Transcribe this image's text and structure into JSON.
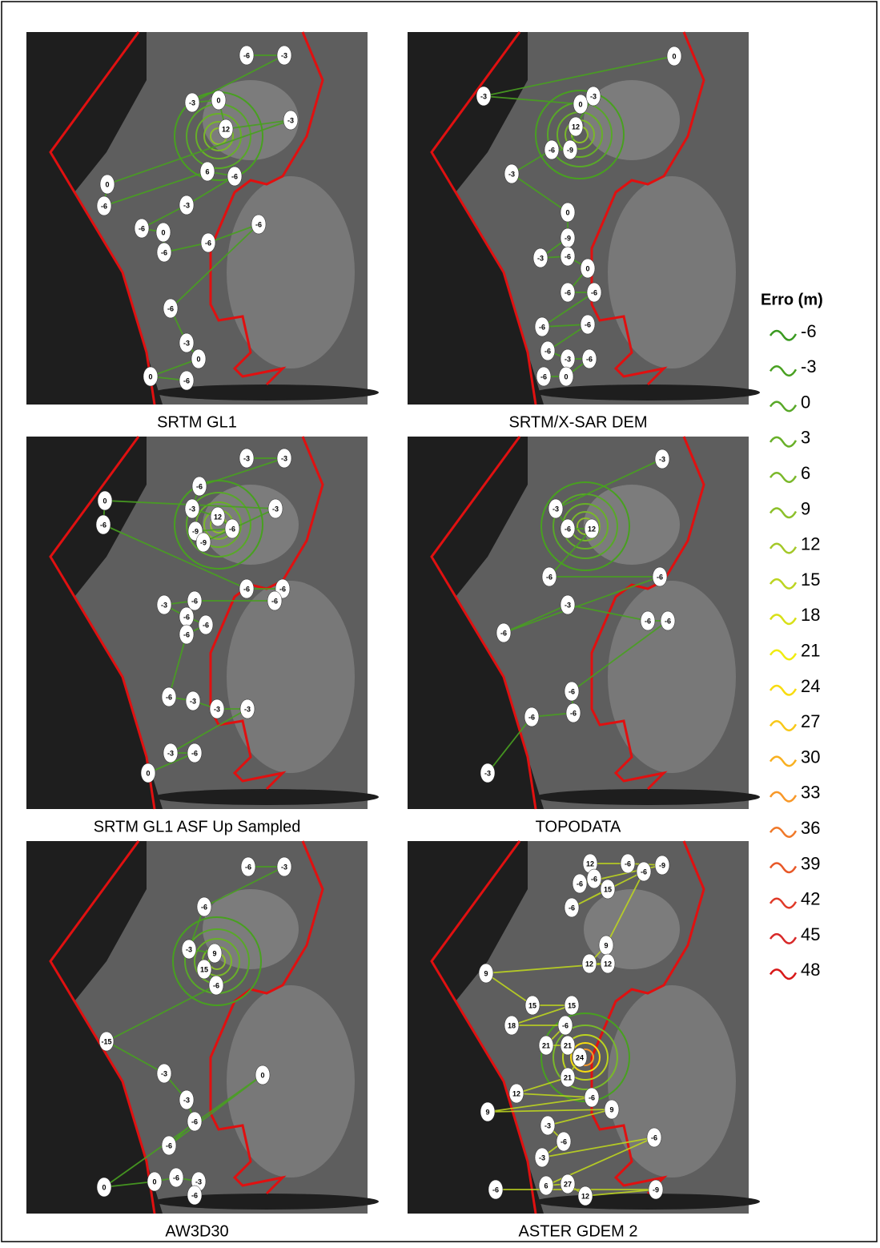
{
  "panels": [
    {
      "caption": "SRTM GL1",
      "contour_labels": [
        -6,
        -3,
        -3,
        0,
        12,
        -3,
        0,
        -6,
        6,
        -6,
        -3,
        -6,
        0,
        -6,
        -6,
        -6,
        -6,
        -3,
        0,
        0,
        -6
      ]
    },
    {
      "caption": "SRTM/X-SAR DEM",
      "contour_labels": [
        0,
        -3,
        0,
        -3,
        12,
        -9,
        -6,
        -3,
        0,
        -9,
        -3,
        -6,
        0,
        -6,
        -6,
        -6,
        -6,
        -6,
        -3,
        -6,
        0,
        -6
      ]
    },
    {
      "caption": "SRTM GL1 ASF Up Sampled",
      "contour_labels": [
        -3,
        -3,
        -6,
        -3,
        12,
        -6,
        -9,
        -9,
        -3,
        0,
        -6,
        -6,
        -6,
        -6,
        -6,
        -3,
        -6,
        -6,
        -6,
        -6,
        -3,
        -3,
        -3,
        -3,
        -6,
        0
      ]
    },
    {
      "caption": "TOPODATA",
      "contour_labels": [
        -3,
        -3,
        -6,
        12,
        -6,
        -6,
        -6,
        -3,
        -6,
        -6,
        -6,
        -6,
        -6,
        -3
      ]
    },
    {
      "caption": "AW3D30",
      "contour_labels": [
        -6,
        -3,
        -6,
        -3,
        9,
        15,
        -6,
        -15,
        -3,
        -3,
        -6,
        -6,
        0,
        0,
        0,
        -6,
        -3,
        -6
      ]
    },
    {
      "caption": "ASTER GDEM 2",
      "contour_labels": [
        12,
        -6,
        -9,
        -6,
        -6,
        15,
        -6,
        -6,
        9,
        12,
        12,
        9,
        15,
        15,
        18,
        -6,
        21,
        21,
        24,
        21,
        12,
        -6,
        9,
        9,
        -3,
        -6,
        -3,
        -6,
        6,
        27,
        12,
        -9,
        -6
      ]
    }
  ],
  "legend": {
    "title": "Erro (m)",
    "entries": [
      {
        "label": "-6",
        "color": "#3a9a20"
      },
      {
        "label": "-3",
        "color": "#48a020"
      },
      {
        "label": "0",
        "color": "#58a828"
      },
      {
        "label": "3",
        "color": "#68b028"
      },
      {
        "label": "6",
        "color": "#7ab82a"
      },
      {
        "label": "9",
        "color": "#8cc02a"
      },
      {
        "label": "12",
        "color": "#a4c828"
      },
      {
        "label": "15",
        "color": "#bcd420"
      },
      {
        "label": "18",
        "color": "#d8e018"
      },
      {
        "label": "21",
        "color": "#f0ec10"
      },
      {
        "label": "24",
        "color": "#f8dc10"
      },
      {
        "label": "27",
        "color": "#f8c818"
      },
      {
        "label": "30",
        "color": "#f8b020"
      },
      {
        "label": "33",
        "color": "#f89828"
      },
      {
        "label": "36",
        "color": "#f07828"
      },
      {
        "label": "39",
        "color": "#e85828"
      },
      {
        "label": "42",
        "color": "#e03a28"
      },
      {
        "label": "45",
        "color": "#d82828"
      },
      {
        "label": "48",
        "color": "#d81818"
      }
    ]
  }
}
